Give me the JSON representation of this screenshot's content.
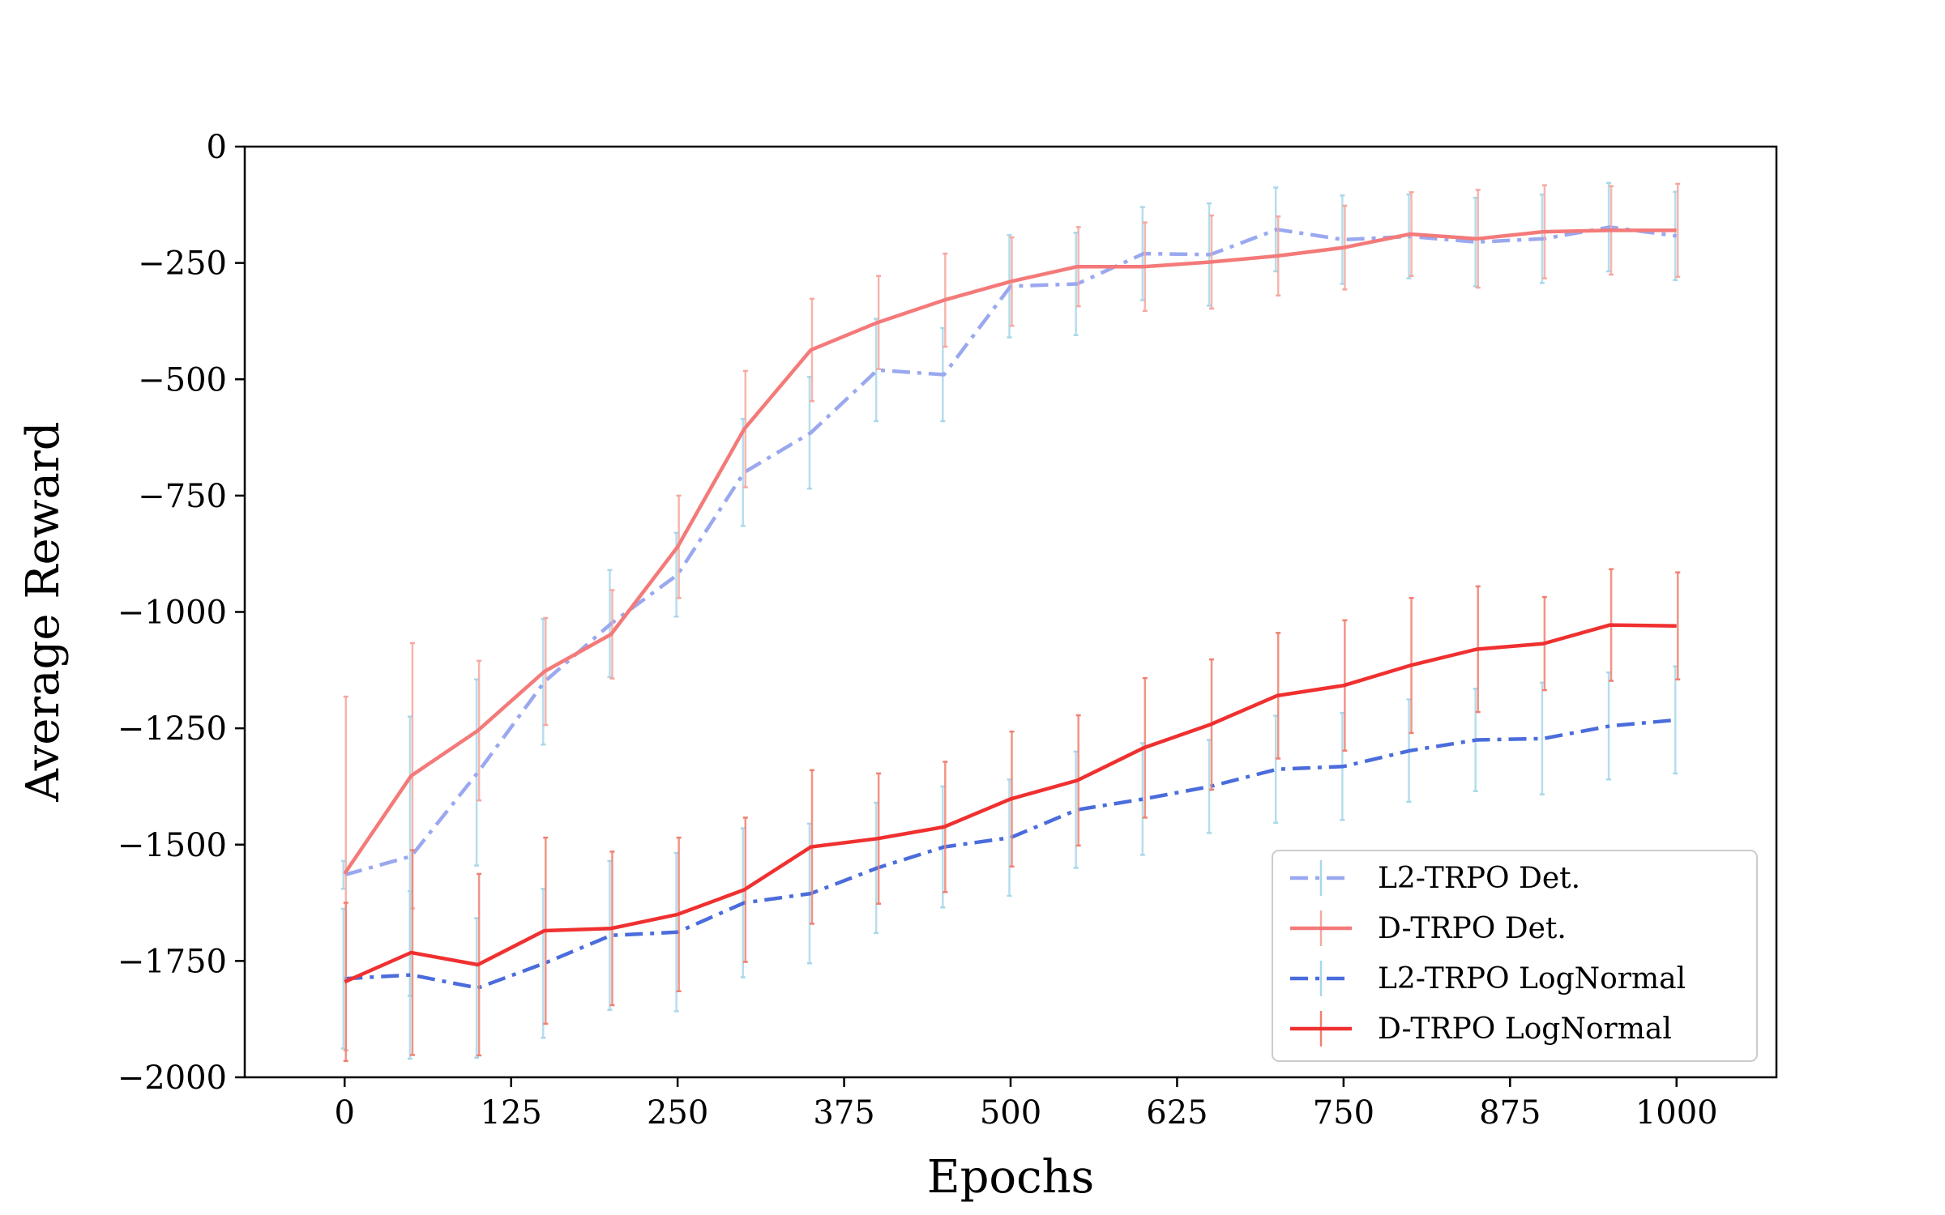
{
  "chart_data": {
    "type": "line",
    "title": "",
    "xlabel": "Epochs",
    "ylabel": "Average Reward",
    "xlim": [
      -75,
      1075
    ],
    "ylim": [
      -2000,
      0
    ],
    "xticks": [
      0,
      125,
      250,
      375,
      500,
      625,
      750,
      875,
      1000
    ],
    "yticks": [
      0,
      -250,
      -500,
      -750,
      -1000,
      -1250,
      -1500,
      -1750,
      -2000
    ],
    "xtick_labels": [
      "0",
      "125",
      "250",
      "375",
      "500",
      "625",
      "750",
      "875",
      "1000"
    ],
    "ytick_labels": [
      "0",
      "−250",
      "−500",
      "−750",
      "−1000",
      "−1250",
      "−1500",
      "−1750",
      "−2000"
    ],
    "grid": false,
    "legend_position": "lower-right",
    "x": [
      0,
      50,
      100,
      150,
      200,
      250,
      300,
      350,
      400,
      450,
      500,
      550,
      600,
      650,
      700,
      750,
      800,
      850,
      900,
      950,
      1000
    ],
    "series": [
      {
        "name": "L2-TRPO Det.",
        "color": "#9aa8f0",
        "err_color": "#a8d8ea",
        "dash": "dashdot",
        "values": [
          -1565,
          -1525,
          -1345,
          -1150,
          -1025,
          -920,
          -700,
          -615,
          -480,
          -490,
          -300,
          -295,
          -230,
          -232,
          -178,
          -200,
          -193,
          -205,
          -198,
          -173,
          -192
        ],
        "err": [
          30,
          300,
          200,
          135,
          115,
          90,
          115,
          120,
          110,
          100,
          110,
          110,
          100,
          110,
          90,
          95,
          90,
          95,
          95,
          95,
          95
        ]
      },
      {
        "name": "D-TRPO Det.",
        "color": "#f47a7a",
        "err_color": "#f4a8a0",
        "dash": "solid",
        "values": [
          -1562,
          -1352,
          -1255,
          -1128,
          -1048,
          -860,
          -607,
          -437,
          -378,
          -330,
          -290,
          -258,
          -258,
          -248,
          -235,
          -217,
          -188,
          -198,
          -183,
          -180,
          -180
        ],
        "err": [
          380,
          285,
          150,
          115,
          95,
          110,
          125,
          110,
          100,
          100,
          95,
          85,
          95,
          100,
          85,
          90,
          90,
          105,
          100,
          95,
          100
        ]
      },
      {
        "name": "L2-TRPO LogNormal",
        "color": "#4a6cdc",
        "err_color": "#a8d8ea",
        "dash": "dashdot",
        "values": [
          -1788,
          -1780,
          -1808,
          -1755,
          -1695,
          -1688,
          -1625,
          -1605,
          -1550,
          -1505,
          -1485,
          -1425,
          -1402,
          -1375,
          -1338,
          -1332,
          -1298,
          -1275,
          -1272,
          -1245,
          -1232
        ],
        "err": [
          150,
          180,
          150,
          160,
          160,
          170,
          160,
          150,
          140,
          130,
          125,
          125,
          120,
          100,
          115,
          115,
          110,
          110,
          120,
          115,
          115
        ]
      },
      {
        "name": "D-TRPO LogNormal",
        "color": "#f03030",
        "err_color": "#f08070",
        "dash": "solid",
        "values": [
          -1795,
          -1732,
          -1758,
          -1685,
          -1680,
          -1650,
          -1597,
          -1505,
          -1487,
          -1462,
          -1402,
          -1362,
          -1292,
          -1242,
          -1180,
          -1158,
          -1115,
          -1080,
          -1068,
          -1028,
          -1030
        ],
        "err": [
          170,
          220,
          195,
          200,
          165,
          165,
          155,
          165,
          140,
          140,
          145,
          140,
          150,
          140,
          135,
          140,
          145,
          135,
          100,
          120,
          115
        ]
      }
    ]
  }
}
